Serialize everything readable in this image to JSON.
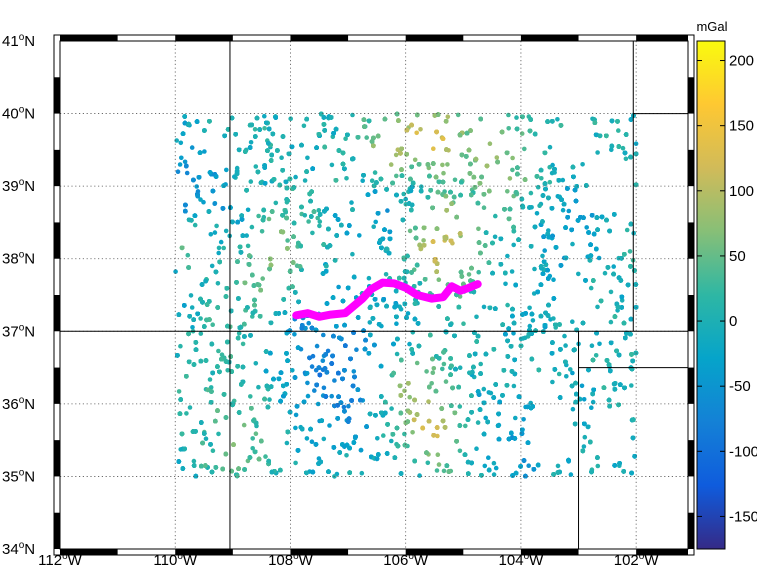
{
  "colorbar": {
    "unit": "mGal",
    "tick_labels": [
      "200",
      "150",
      "100",
      "50",
      "0",
      "-50",
      "-100",
      "-150"
    ],
    "tick_values": [
      200,
      150,
      100,
      50,
      0,
      -50,
      -100,
      -150
    ],
    "range": [
      -175,
      215
    ],
    "colormap": "parula",
    "colormap_stops": [
      "#352a87",
      "#0f5cdd",
      "#1481d6",
      "#06a4ca",
      "#2eb7a4",
      "#87bf77",
      "#d1bb59",
      "#fec832",
      "#f9fb0e"
    ]
  },
  "map": {
    "lon_range": [
      -112,
      -101.1
    ],
    "lat_range": [
      34,
      41
    ],
    "lat_ticks": [
      {
        "lat": 41,
        "label": "41°N"
      },
      {
        "lat": 40,
        "label": "40°N"
      },
      {
        "lat": 39,
        "label": "39°N"
      },
      {
        "lat": 38,
        "label": "38°N"
      },
      {
        "lat": 37,
        "label": "37°N"
      },
      {
        "lat": 36,
        "label": "36°N"
      },
      {
        "lat": 35,
        "label": "35°N"
      },
      {
        "lat": 34,
        "label": "34°N"
      }
    ],
    "lon_ticks": [
      {
        "lon": -112,
        "label": "112°W"
      },
      {
        "lon": -110,
        "label": "110°W"
      },
      {
        "lon": -108,
        "label": "108°W"
      },
      {
        "lon": -106,
        "label": "106°W"
      },
      {
        "lon": -104,
        "label": "104°W"
      },
      {
        "lon": -102,
        "label": "102°W"
      }
    ],
    "gridlines": "dotted",
    "data_extent": {
      "lon": [
        -110,
        -102
      ],
      "lat": [
        35,
        40
      ]
    },
    "state_boundaries": [
      [
        [
          -109.05,
          41
        ],
        [
          -109.05,
          34
        ]
      ],
      [
        [
          -112,
          37
        ],
        [
          -101.1,
          37
        ]
      ],
      [
        [
          -102.05,
          41
        ],
        [
          -102.05,
          37
        ]
      ],
      [
        [
          -103,
          37
        ],
        [
          -103,
          34
        ]
      ],
      [
        [
          -103,
          36.5
        ],
        [
          -101.1,
          36.5
        ]
      ],
      [
        [
          -102.05,
          40
        ],
        [
          -101.1,
          40
        ]
      ]
    ],
    "profile_line": {
      "color": "#ff00ff",
      "points": [
        [
          -107.9,
          37.22
        ],
        [
          -107.7,
          37.25
        ],
        [
          -107.5,
          37.2
        ],
        [
          -107.3,
          37.23
        ],
        [
          -107.05,
          37.25
        ],
        [
          -106.9,
          37.35
        ],
        [
          -106.75,
          37.45
        ],
        [
          -106.6,
          37.58
        ],
        [
          -106.4,
          37.67
        ],
        [
          -106.2,
          37.66
        ],
        [
          -106.0,
          37.6
        ],
        [
          -105.8,
          37.5
        ],
        [
          -105.55,
          37.45
        ],
        [
          -105.35,
          37.47
        ],
        [
          -105.2,
          37.62
        ],
        [
          -105.05,
          37.56
        ],
        [
          -104.9,
          37.6
        ],
        [
          -104.75,
          37.65
        ]
      ]
    },
    "gravity_anomaly_field": {
      "regions": [
        {
          "lon": -105.3,
          "lat": 38.2,
          "r": 0.6,
          "value": 130
        },
        {
          "lon": -106.2,
          "lat": 39.5,
          "r": 0.5,
          "value": 120
        },
        {
          "lon": -105.5,
          "lat": 39.7,
          "r": 0.4,
          "value": 140
        },
        {
          "lon": -104.3,
          "lat": 39.3,
          "r": 0.7,
          "value": 90
        },
        {
          "lon": -105.9,
          "lat": 36.2,
          "r": 0.6,
          "value": 80
        },
        {
          "lon": -105.5,
          "lat": 35.6,
          "r": 0.5,
          "value": 110
        },
        {
          "lon": -108.3,
          "lat": 38.0,
          "r": 0.6,
          "value": 80
        },
        {
          "lon": -109.8,
          "lat": 38.3,
          "r": 0.5,
          "value": 110
        },
        {
          "lon": -109.9,
          "lat": 38.6,
          "r": 0.8,
          "value": -90
        },
        {
          "lon": -107.3,
          "lat": 36.5,
          "r": 1.1,
          "value": -70
        },
        {
          "lon": -106.2,
          "lat": 38.8,
          "r": 0.5,
          "value": -40
        },
        {
          "lon": -109.0,
          "lat": 36.8,
          "r": 1.0,
          "value": 30
        },
        {
          "lon": -103.5,
          "lat": 38.3,
          "r": 1.0,
          "value": -20
        },
        {
          "lon": -102.8,
          "lat": 36.0,
          "r": 0.9,
          "value": 10
        },
        {
          "lon": -104.0,
          "lat": 35.5,
          "r": 0.8,
          "value": -30
        },
        {
          "lon": -108.8,
          "lat": 35.6,
          "r": 0.7,
          "value": 60
        }
      ],
      "empty_areas": [
        {
          "lon": -103.0,
          "lat": 39.6,
          "r": 0.35
        },
        {
          "lon": -102.4,
          "lat": 39.1,
          "r": 0.4
        },
        {
          "lon": -103.5,
          "lat": 35.6,
          "r": 0.45
        },
        {
          "lon": -102.4,
          "lat": 35.6,
          "r": 0.35
        },
        {
          "lon": -107.6,
          "lat": 37.55,
          "r": 0.25
        },
        {
          "lon": -108.3,
          "lat": 35.7,
          "r": 0.3
        },
        {
          "lon": -106.6,
          "lat": 36.3,
          "r": 0.25
        },
        {
          "lon": -109.2,
          "lat": 39.5,
          "r": 0.25
        }
      ]
    }
  }
}
